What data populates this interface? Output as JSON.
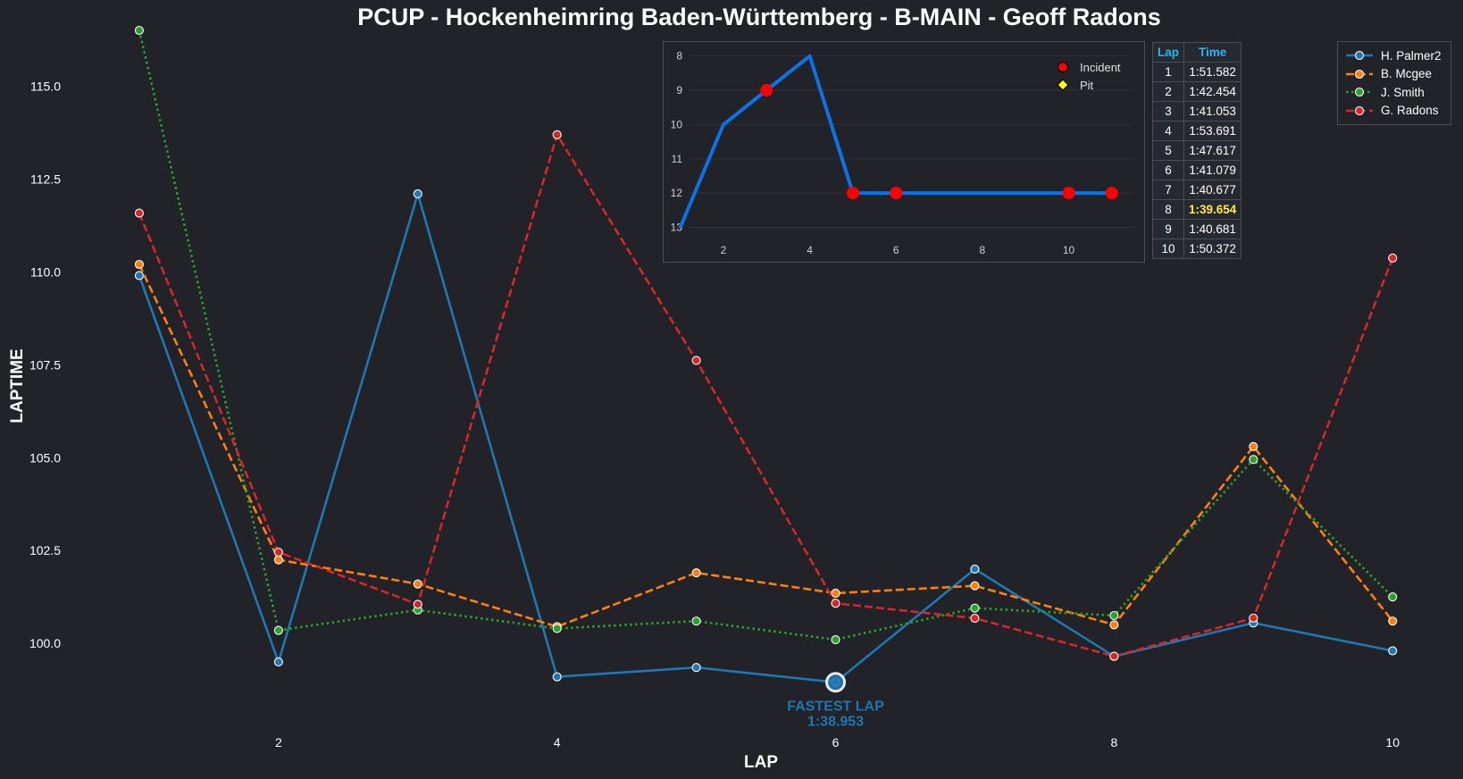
{
  "chart_data": [
    {
      "type": "line",
      "title": "PCUP - Hockenheimring Baden-Württemberg - B-MAIN - Geoff Radons",
      "xlabel": "LAP",
      "ylabel": "LAPTIME",
      "x": [
        1,
        2,
        3,
        4,
        5,
        6,
        7,
        8,
        9,
        10
      ],
      "xlim": [
        0.0,
        10.3
      ],
      "ylim": [
        97.6,
        116.5
      ],
      "x_ticks": [
        "2",
        "4",
        "6",
        "8",
        "10"
      ],
      "y_ticks": [
        "100.0",
        "102.5",
        "105.0",
        "107.5",
        "110.0",
        "112.5",
        "115.0"
      ],
      "grid": false,
      "legend_position": "top-right",
      "series": [
        {
          "name": "H. Palmer2",
          "color": "#1f77b4",
          "linestyle": "solid",
          "values": [
            109.9,
            99.5,
            112.1,
            99.1,
            99.35,
            98.953,
            102.0,
            99.65,
            100.55,
            99.8
          ]
        },
        {
          "name": "B. Mcgee",
          "color": "#ff7f0e",
          "linestyle": "dashed",
          "values": [
            110.2,
            102.25,
            101.6,
            100.45,
            101.9,
            101.35,
            101.55,
            100.5,
            105.3,
            100.6
          ]
        },
        {
          "name": "J. Smith",
          "color": "#2ca02c",
          "linestyle": "dotted",
          "values": [
            116.5,
            100.35,
            100.9,
            100.4,
            100.6,
            100.1,
            100.95,
            100.75,
            104.95,
            101.25
          ]
        },
        {
          "name": "G. Radons",
          "color": "#d62728",
          "linestyle": "dashed",
          "values": [
            111.582,
            102.454,
            101.053,
            113.691,
            107.617,
            101.079,
            100.677,
            99.654,
            100.681,
            110.372
          ]
        }
      ],
      "annotation": {
        "label": "FASTEST LAP",
        "value": "1:38.953",
        "x": 6,
        "y": 98.953
      }
    },
    {
      "type": "line",
      "x": [
        1,
        2,
        3,
        4,
        5,
        6,
        7,
        8,
        9,
        10,
        11
      ],
      "xlim": [
        0.8,
        11.5
      ],
      "ylim": [
        13.3,
        7.8
      ],
      "y_inverted": true,
      "x_ticks": [
        "2",
        "4",
        "6",
        "8",
        "10"
      ],
      "y_ticks": [
        "8",
        "9",
        "10",
        "11",
        "12",
        "13"
      ],
      "grid": true,
      "color": "#0a73e8",
      "values": [
        13,
        10,
        9,
        8,
        12,
        12,
        12,
        12,
        12,
        12,
        12
      ],
      "incidents": [
        3,
        5,
        6,
        10,
        11
      ],
      "pits": [],
      "legend": [
        {
          "label": "Incident",
          "marker": "circle",
          "color": "#ff0000"
        },
        {
          "label": "Pit",
          "marker": "diamond",
          "color": "#ffff00"
        }
      ]
    },
    {
      "type": "table",
      "columns": [
        "Lap",
        "Time"
      ],
      "rows": [
        [
          "1",
          "1:51.582"
        ],
        [
          "2",
          "1:42.454"
        ],
        [
          "3",
          "1:41.053"
        ],
        [
          "4",
          "1:53.691"
        ],
        [
          "5",
          "1:47.617"
        ],
        [
          "6",
          "1:41.079"
        ],
        [
          "7",
          "1:40.677"
        ],
        [
          "8",
          "1:39.654"
        ],
        [
          "9",
          "1:40.681"
        ],
        [
          "10",
          "1:50.372"
        ]
      ],
      "best_row": 7
    }
  ]
}
